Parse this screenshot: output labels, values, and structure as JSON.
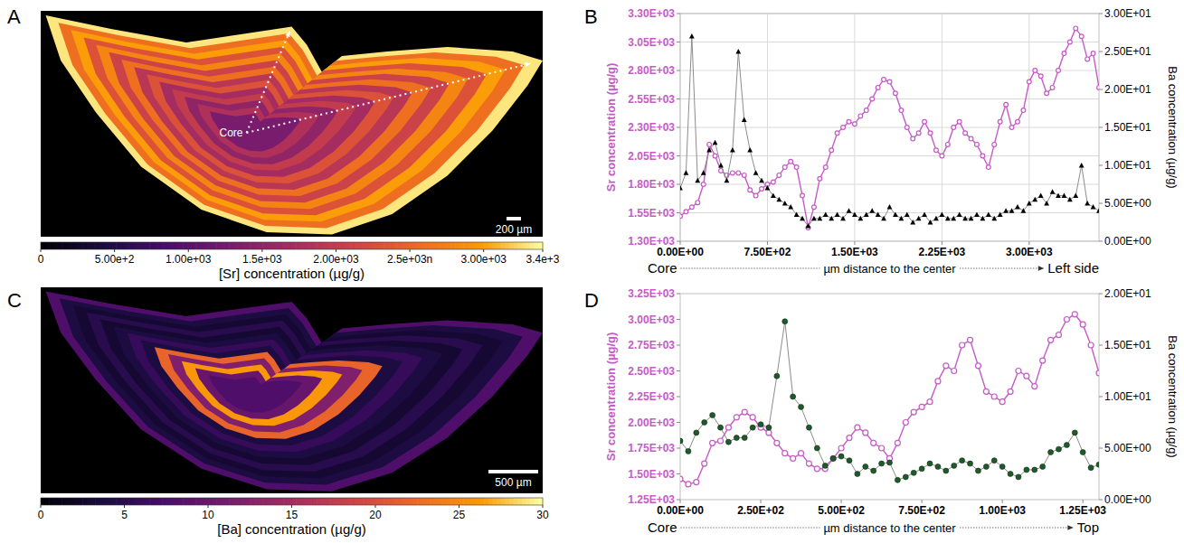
{
  "chart_data": [
    {
      "panel": "A",
      "type": "heatmap",
      "colorbar": {
        "range": [
          0,
          3400
        ],
        "ticks": [
          {
            "value": 0,
            "label": "0"
          },
          {
            "value": 500,
            "label": "5.00e+2"
          },
          {
            "value": 1000,
            "label": "1.00e+03"
          },
          {
            "value": 1500,
            "label": "1.5e+03"
          },
          {
            "value": 2000,
            "label": "2.00e+03"
          },
          {
            "value": 2500,
            "label": "2.5e+03n"
          },
          {
            "value": 3000,
            "label": "3.00e+03"
          },
          {
            "value": 3400,
            "label": "3.4e+3"
          }
        ]
      },
      "colorbar_title": "[Sr] concentration  (µg/g)",
      "rings": [
        3300,
        2600,
        3000,
        2300,
        2800,
        2100,
        2600,
        1900,
        2300,
        1700,
        2000,
        1500,
        1800,
        1300
      ],
      "annotations": [
        "Core"
      ],
      "scale_bar": "200 µm"
    },
    {
      "panel": "B",
      "type": "line",
      "x": [
        0,
        50,
        100,
        150,
        200,
        250,
        300,
        350,
        400,
        450,
        500,
        550,
        600,
        650,
        700,
        750,
        800,
        850,
        900,
        950,
        1000,
        1050,
        1100,
        1150,
        1200,
        1250,
        1300,
        1350,
        1400,
        1450,
        1500,
        1550,
        1600,
        1650,
        1700,
        1750,
        1800,
        1850,
        1900,
        1950,
        2000,
        2050,
        2100,
        2150,
        2200,
        2250,
        2300,
        2350,
        2400,
        2450,
        2500,
        2550,
        2600,
        2650,
        2700,
        2750,
        2800,
        2850,
        2900,
        2950,
        3000,
        3050,
        3100,
        3150,
        3200,
        3250,
        3300,
        3350,
        3400,
        3450,
        3500,
        3550,
        3600
      ],
      "series": [
        {
          "color": "#c65bc6",
          "marker": "open_circle",
          "values": [
            1520,
            1560,
            1600,
            1640,
            1800,
            2150,
            2050,
            1920,
            1880,
            1900,
            1900,
            1880,
            1750,
            1700,
            1760,
            1800,
            1820,
            1880,
            1950,
            2000,
            1950,
            1700,
            1420,
            1600,
            1850,
            1950,
            2100,
            2250,
            2300,
            2350,
            2330,
            2400,
            2450,
            2550,
            2650,
            2720,
            2700,
            2600,
            2450,
            2300,
            2200,
            2250,
            2350,
            2250,
            2100,
            2050,
            2150,
            2300,
            2350,
            2250,
            2200,
            2150,
            2050,
            1950,
            2150,
            2350,
            2500,
            2300,
            2350,
            2450,
            2700,
            2800,
            2750,
            2600,
            2650,
            2800,
            2950,
            3050,
            3170,
            3100,
            2900,
            2950,
            2650
          ]
        },
        {
          "color": "#000000",
          "marker": "triangle",
          "axis": "y2",
          "values": [
            7,
            9,
            27,
            8,
            9,
            12,
            13,
            10,
            8,
            12,
            25,
            16,
            12,
            9,
            8,
            7,
            6,
            5.5,
            5,
            4.5,
            3.5,
            3,
            2,
            3,
            3,
            3.5,
            3,
            3.5,
            3,
            4,
            3.5,
            3,
            3.5,
            4,
            3.5,
            3,
            4.5,
            3.5,
            3,
            3.5,
            2.5,
            3,
            3.5,
            2.5,
            3,
            3.5,
            3,
            3,
            3.5,
            3,
            3,
            3.5,
            3,
            3.5,
            3,
            3.5,
            4,
            4,
            4.5,
            4,
            5,
            5.5,
            6,
            5,
            6.5,
            6,
            6,
            5.5,
            6,
            10,
            5,
            4.5,
            4
          ]
        }
      ],
      "xlim": [
        0,
        3600
      ],
      "xticks": [
        {
          "value": 0,
          "label": "0.00E+00"
        },
        {
          "value": 750,
          "label": "7.50E+02"
        },
        {
          "value": 1500,
          "label": "1.50E+03"
        },
        {
          "value": 2250,
          "label": "2.25E+03"
        },
        {
          "value": 3000,
          "label": "3.00E+03"
        }
      ],
      "ylim": [
        1300,
        3300
      ],
      "yticks": [
        {
          "value": 1300,
          "label": "1.30E+03"
        },
        {
          "value": 1550,
          "label": "1.55E+03"
        },
        {
          "value": 1800,
          "label": "1.80E+03"
        },
        {
          "value": 2050,
          "label": "2.05E+03"
        },
        {
          "value": 2300,
          "label": "2.30E+03"
        },
        {
          "value": 2550,
          "label": "2.55E+03"
        },
        {
          "value": 2800,
          "label": "2.80E+03"
        },
        {
          "value": 3050,
          "label": "3.05E+03"
        },
        {
          "value": 3300,
          "label": "3.30E+03"
        }
      ],
      "y2lim": [
        0,
        30
      ],
      "y2ticks": [
        {
          "value": 0,
          "label": "0.00E+00"
        },
        {
          "value": 5,
          "label": "5.00E+00"
        },
        {
          "value": 10,
          "label": "1.00E+01"
        },
        {
          "value": 15,
          "label": "1.50E+01"
        },
        {
          "value": 20,
          "label": "2.00E+01"
        },
        {
          "value": 25,
          "label": "2.50E+01"
        },
        {
          "value": 30,
          "label": "3.00E+01"
        }
      ],
      "y_label": "Sr concentration (µg/g)",
      "y2_label": "Ba concentration (µg/g)",
      "x_label": "µm distance to the center",
      "x_start_label": "Core",
      "x_end_label": "Left side",
      "grid": true
    },
    {
      "panel": "C",
      "type": "heatmap",
      "colorbar": {
        "range": [
          0,
          30
        ],
        "ticks": [
          0,
          5,
          10,
          15,
          20,
          25,
          30
        ]
      },
      "colorbar_title": "[Ba] concentration  (µg/g)",
      "rings": [
        8,
        4,
        3,
        5,
        3,
        4,
        6,
        4,
        22,
        12,
        26,
        10,
        8
      ],
      "scale_bar": "500 µm"
    },
    {
      "panel": "D",
      "type": "line",
      "x": [
        0,
        25,
        50,
        75,
        100,
        125,
        150,
        175,
        200,
        225,
        250,
        275,
        300,
        325,
        350,
        375,
        400,
        425,
        450,
        475,
        500,
        525,
        550,
        575,
        600,
        625,
        650,
        675,
        700,
        725,
        750,
        775,
        800,
        825,
        850,
        875,
        900,
        925,
        950,
        975,
        1000,
        1025,
        1050,
        1075,
        1100,
        1125,
        1150,
        1175,
        1200,
        1225,
        1250,
        1275,
        1300
      ],
      "series": [
        {
          "color": "#c65bc6",
          "marker": "open_circle",
          "values": [
            1450,
            1400,
            1420,
            1600,
            1800,
            1820,
            1950,
            2050,
            2100,
            2050,
            1950,
            1900,
            1800,
            1700,
            1650,
            1700,
            1600,
            1550,
            1550,
            1650,
            1750,
            1850,
            1950,
            1900,
            1800,
            1750,
            1650,
            1800,
            2000,
            2100,
            2150,
            2200,
            2400,
            2550,
            2500,
            2750,
            2800,
            2550,
            2300,
            2250,
            2200,
            2300,
            2500,
            2450,
            2350,
            2600,
            2800,
            2850,
            3000,
            3050,
            2950,
            2750,
            2480
          ]
        },
        {
          "color": "#1f5a2a",
          "marker": "circle",
          "axis": "y2",
          "values": [
            5.7,
            4.7,
            6.5,
            7.5,
            8.2,
            7,
            5.6,
            6,
            6,
            7,
            7.3,
            7,
            12,
            17.3,
            10,
            9,
            7,
            5,
            3.3,
            4,
            4.2,
            3.8,
            2.5,
            3.2,
            2.8,
            3.5,
            3.6,
            1.9,
            2.2,
            2.6,
            3,
            3.5,
            3.2,
            2.8,
            3.3,
            3.8,
            3.5,
            2.8,
            3.2,
            3.8,
            3.2,
            2.5,
            2.2,
            2.9,
            2.9,
            3.2,
            4.6,
            4.9,
            5.3,
            6.5,
            4.6,
            3.1,
            3.4
          ]
        }
      ],
      "xlim": [
        0,
        1300
      ],
      "xticks": [
        {
          "value": 0,
          "label": "0.00E+00"
        },
        {
          "value": 250,
          "label": "2.50E+02"
        },
        {
          "value": 500,
          "label": "5.00E+02"
        },
        {
          "value": 750,
          "label": "7.50E+02"
        },
        {
          "value": 1000,
          "label": "1.00E+03"
        },
        {
          "value": 1250,
          "label": "1.25E+03"
        }
      ],
      "ylim": [
        1250,
        3250
      ],
      "yticks": [
        {
          "value": 1250,
          "label": "1.25E+03"
        },
        {
          "value": 1500,
          "label": "1.50E+03"
        },
        {
          "value": 1750,
          "label": "1.75E+03"
        },
        {
          "value": 2000,
          "label": "2.00E+03"
        },
        {
          "value": 2250,
          "label": "2.25E+03"
        },
        {
          "value": 2500,
          "label": "2.50E+03"
        },
        {
          "value": 2750,
          "label": "2.75E+03"
        },
        {
          "value": 3000,
          "label": "3.00E+03"
        },
        {
          "value": 3250,
          "label": "3.25E+03"
        }
      ],
      "y2lim": [
        0,
        20
      ],
      "y2ticks": [
        {
          "value": 0,
          "label": "0.00E+00"
        },
        {
          "value": 5,
          "label": "5.00E+00"
        },
        {
          "value": 10,
          "label": "1.00E+01"
        },
        {
          "value": 15,
          "label": "1.50E+01"
        },
        {
          "value": 20,
          "label": "2.00E+01"
        }
      ],
      "y_label": "Sr concentration (µg/g)",
      "y2_label": "Ba concentration (µg/g)",
      "x_label": "µm distance to the center",
      "x_start_label": "Core",
      "x_end_label": "Top",
      "grid": false
    }
  ]
}
